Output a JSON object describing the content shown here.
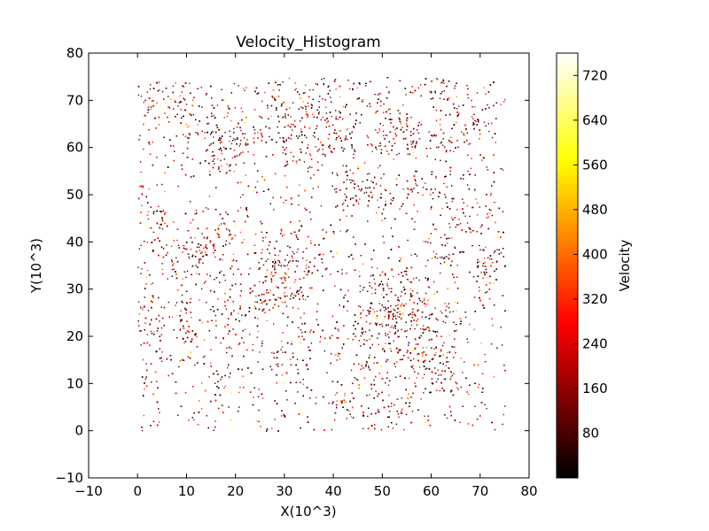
{
  "chart_data": {
    "type": "scatter",
    "title": "Velocity_Histogram",
    "xlabel": "X(10^3)",
    "ylabel": "Y(10^3)",
    "xlim": [
      -10,
      80
    ],
    "ylim": [
      -10,
      80
    ],
    "xticks": [
      "−10",
      "0",
      "10",
      "20",
      "30",
      "40",
      "50",
      "60",
      "70",
      "80"
    ],
    "yticks": [
      "−10",
      "0",
      "10",
      "20",
      "30",
      "40",
      "50",
      "60",
      "70",
      "80"
    ],
    "xtick_values": [
      -10,
      0,
      10,
      20,
      30,
      40,
      50,
      60,
      70,
      80
    ],
    "ytick_values": [
      -10,
      0,
      10,
      20,
      30,
      40,
      50,
      60,
      70,
      80
    ],
    "point_region": {
      "x": [
        0,
        75
      ],
      "y": [
        0,
        75
      ]
    },
    "grid": false,
    "colorbar": {
      "label": "Velocity",
      "colormap": "hot",
      "range": [
        0,
        760
      ],
      "ticks": [
        "80",
        "160",
        "240",
        "320",
        "400",
        "480",
        "560",
        "640",
        "720"
      ],
      "tick_values": [
        80,
        160,
        240,
        320,
        400,
        480,
        560,
        640,
        720
      ]
    },
    "colors": {
      "low": "#000000",
      "mid": "#ff0000",
      "high": "#ffff00",
      "max": "#ffffff"
    }
  }
}
